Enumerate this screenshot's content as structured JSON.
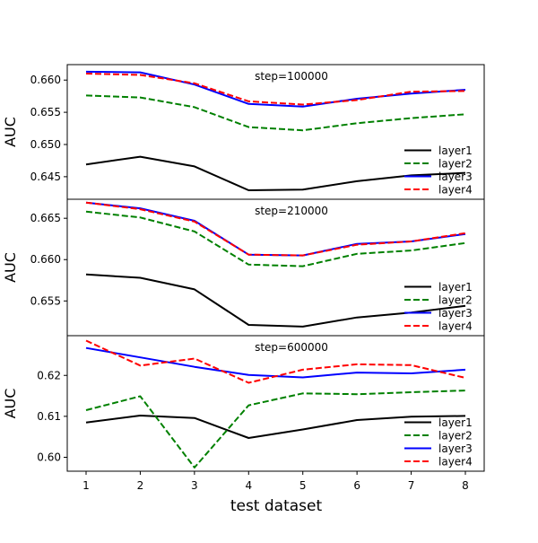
{
  "figure": {
    "xlabel": "test dataset"
  },
  "chart_data": [
    {
      "type": "line",
      "title": "step=100000",
      "ylabel": "AUC",
      "xlabel": "",
      "x": [
        1,
        2,
        3,
        4,
        5,
        6,
        7,
        8
      ],
      "ylim": [
        0.6415,
        0.6624
      ],
      "yticks": [
        0.645,
        0.65,
        0.655,
        0.66
      ],
      "ytick_labels": [
        "0.645",
        "0.650",
        "0.655",
        "0.660"
      ],
      "xticks": [],
      "xtick_labels": [],
      "legend_position": "lower-right",
      "series": [
        {
          "name": "layer1",
          "color": "#000000",
          "dash": "solid",
          "values": [
            0.6469,
            0.6481,
            0.6466,
            0.6429,
            0.643,
            0.6443,
            0.6452,
            0.6456
          ]
        },
        {
          "name": "layer2",
          "color": "#008000",
          "dash": "dashed",
          "values": [
            0.6576,
            0.6573,
            0.6558,
            0.6527,
            0.6522,
            0.6533,
            0.6541,
            0.6547
          ]
        },
        {
          "name": "layer3",
          "color": "#0000ff",
          "dash": "solid",
          "values": [
            0.6613,
            0.6612,
            0.6593,
            0.6563,
            0.6559,
            0.6571,
            0.6579,
            0.6585
          ]
        },
        {
          "name": "layer4",
          "color": "#ff0000",
          "dash": "dashed",
          "values": [
            0.661,
            0.6608,
            0.6595,
            0.6567,
            0.6562,
            0.6569,
            0.6582,
            0.6583
          ]
        }
      ]
    },
    {
      "type": "line",
      "title": "step=210000",
      "ylabel": "AUC",
      "xlabel": "",
      "x": [
        1,
        2,
        3,
        4,
        5,
        6,
        7,
        8
      ],
      "ylim": [
        0.6508,
        0.6673
      ],
      "yticks": [
        0.655,
        0.66,
        0.665
      ],
      "ytick_labels": [
        "0.655",
        "0.660",
        "0.665"
      ],
      "xticks": [],
      "xtick_labels": [],
      "legend_position": "lower-right",
      "series": [
        {
          "name": "layer1",
          "color": "#000000",
          "dash": "solid",
          "values": [
            0.6582,
            0.6578,
            0.6564,
            0.6521,
            0.6519,
            0.653,
            0.6536,
            0.6544
          ]
        },
        {
          "name": "layer2",
          "color": "#008000",
          "dash": "dashed",
          "values": [
            0.6658,
            0.6651,
            0.6634,
            0.6594,
            0.6592,
            0.6607,
            0.6611,
            0.662
          ]
        },
        {
          "name": "layer3",
          "color": "#0000ff",
          "dash": "solid",
          "values": [
            0.6669,
            0.6662,
            0.6647,
            0.6606,
            0.6605,
            0.6619,
            0.6622,
            0.6631
          ]
        },
        {
          "name": "layer4",
          "color": "#ff0000",
          "dash": "dashed",
          "values": [
            0.6669,
            0.6661,
            0.6646,
            0.6606,
            0.6605,
            0.6618,
            0.6622,
            0.6632
          ]
        }
      ]
    },
    {
      "type": "line",
      "title": "step=600000",
      "ylabel": "AUC",
      "xlabel": "test dataset",
      "x": [
        1,
        2,
        3,
        4,
        5,
        6,
        7,
        8
      ],
      "ylim": [
        0.5966,
        0.6297
      ],
      "yticks": [
        0.6,
        0.61,
        0.62
      ],
      "ytick_labels": [
        "0.60",
        "0.61",
        "0.62"
      ],
      "xticks": [
        1,
        2,
        3,
        4,
        5,
        6,
        7,
        8
      ],
      "xtick_labels": [
        "1",
        "2",
        "3",
        "4",
        "5",
        "6",
        "7",
        "8"
      ],
      "legend_position": "lower-right",
      "series": [
        {
          "name": "layer1",
          "color": "#000000",
          "dash": "solid",
          "values": [
            0.6085,
            0.6102,
            0.6096,
            0.6047,
            0.6068,
            0.6091,
            0.6099,
            0.6101
          ]
        },
        {
          "name": "layer2",
          "color": "#008000",
          "dash": "dashed",
          "values": [
            0.6115,
            0.6149,
            0.5975,
            0.6127,
            0.6156,
            0.6154,
            0.6159,
            0.6163
          ]
        },
        {
          "name": "layer3",
          "color": "#0000ff",
          "dash": "solid",
          "values": [
            0.6267,
            0.6244,
            0.6221,
            0.6201,
            0.6195,
            0.6207,
            0.6205,
            0.6214
          ]
        },
        {
          "name": "layer4",
          "color": "#ff0000",
          "dash": "dashed",
          "values": [
            0.6285,
            0.6224,
            0.6241,
            0.6182,
            0.6214,
            0.6227,
            0.6225,
            0.6194
          ]
        }
      ]
    }
  ]
}
